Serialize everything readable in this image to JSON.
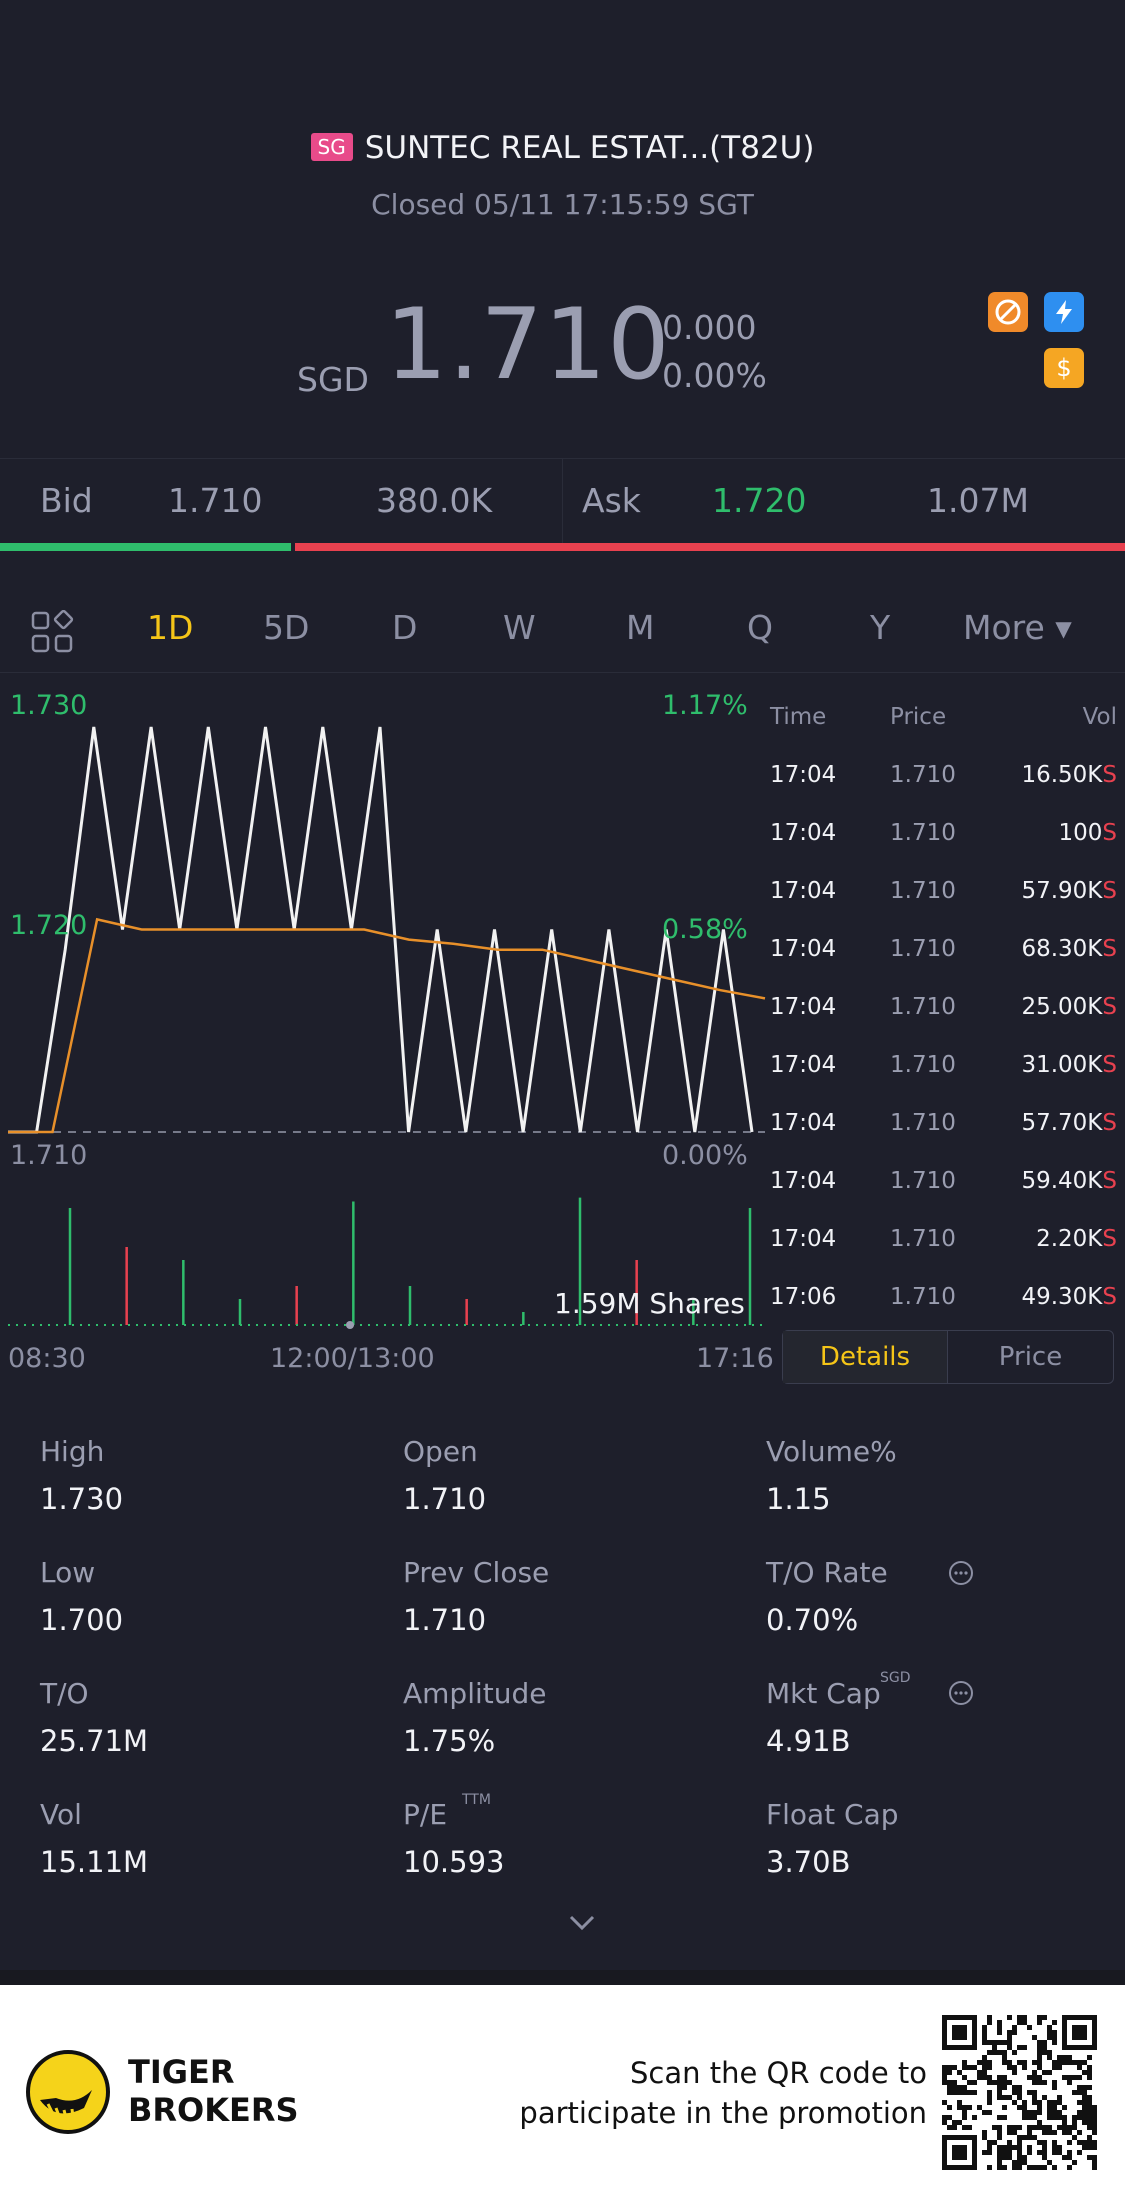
{
  "header": {
    "market_badge": "SG",
    "title": "SUNTEC REAL ESTAT...(T82U)",
    "status": "Closed 05/11 17:15:59 SGT"
  },
  "quote": {
    "currency": "SGD",
    "price": "1.710",
    "change": "0.000",
    "change_pct": "0.00%"
  },
  "orderbook": {
    "bid_label": "Bid",
    "bid_price": "1.710",
    "bid_size": "380.0K",
    "ask_label": "Ask",
    "ask_price": "1.720",
    "ask_size": "1.07M",
    "bid_ratio": 0.26
  },
  "tabs": [
    "1D",
    "5D",
    "D",
    "W",
    "M",
    "Q",
    "Y",
    "More ▾"
  ],
  "active_tab": "1D",
  "chart_labels": {
    "y_top": "1.730",
    "y_mid": "1.720",
    "y_bot": "1.710",
    "pct_top": "1.17%",
    "pct_mid": "0.58%",
    "pct_bot": "0.00%",
    "volume": "1.59M Shares",
    "x_start": "08:30",
    "x_mid": "12:00/13:00",
    "x_end": "17:16"
  },
  "chart_data": {
    "type": "line",
    "ylim": [
      1.71,
      1.73
    ],
    "series": [
      {
        "values": [
          1.71,
          1.71,
          1.719,
          1.73,
          1.72,
          1.73,
          1.72,
          1.73,
          1.72,
          1.73,
          1.72,
          1.73,
          1.72,
          1.73,
          1.71,
          1.72,
          1.71,
          1.72,
          1.71,
          1.72,
          1.71,
          1.72,
          1.71,
          1.72,
          1.71,
          1.72,
          1.71
        ]
      },
      {
        "values": [
          1.71,
          1.71,
          1.7205,
          1.72,
          1.72,
          1.72,
          1.72,
          1.72,
          1.72,
          1.7195,
          1.7193,
          1.719,
          1.719,
          1.7185,
          1.718,
          1.7175,
          1.717,
          1.7166
        ]
      }
    ],
    "volume_bars": [
      0.9,
      0.6,
      0.5,
      0.2,
      0.3,
      0.95,
      0.3,
      0.2,
      0.1,
      0.98,
      0.5,
      0.2,
      0.9
    ]
  },
  "trades": {
    "headers": [
      "Time",
      "Price",
      "Vol"
    ],
    "rows": [
      [
        "17:04",
        "1.710",
        "16.50K"
      ],
      [
        "17:04",
        "1.710",
        "100"
      ],
      [
        "17:04",
        "1.710",
        "57.90K"
      ],
      [
        "17:04",
        "1.710",
        "68.30K"
      ],
      [
        "17:04",
        "1.710",
        "25.00K"
      ],
      [
        "17:04",
        "1.710",
        "31.00K"
      ],
      [
        "17:04",
        "1.710",
        "57.70K"
      ],
      [
        "17:04",
        "1.710",
        "59.40K"
      ],
      [
        "17:04",
        "1.710",
        "2.20K"
      ],
      [
        "17:06",
        "1.710",
        "49.30K"
      ]
    ],
    "side": "S"
  },
  "toggle": {
    "details": "Details",
    "price": "Price"
  },
  "stats": [
    {
      "label": "High",
      "value": "1.730"
    },
    {
      "label": "Open",
      "value": "1.710"
    },
    {
      "label": "Volume%",
      "value": "1.15"
    },
    {
      "label": "Low",
      "value": "1.700"
    },
    {
      "label": "Prev Close",
      "value": "1.710"
    },
    {
      "label": "T/O Rate",
      "value": "0.70%"
    },
    {
      "label": "T/O",
      "value": "25.71M"
    },
    {
      "label": "Amplitude",
      "value": "1.75%"
    },
    {
      "label": "Mkt Cap",
      "value": "4.91B"
    },
    {
      "label": "Vol",
      "value": "15.11M"
    },
    {
      "label": "P/E",
      "value": "10.593"
    },
    {
      "label": "Float Cap",
      "value": "3.70B"
    }
  ],
  "stat_sups": {
    "mkt_cap": "SGD",
    "pe": "TTM"
  },
  "footer": {
    "brand_line1": "TIGER",
    "brand_line2": "BROKERS",
    "promo_line1": "Scan the QR code to",
    "promo_line2": "participate in the promotion"
  },
  "colors": {
    "bg": "#1e1f2b",
    "up": "#2fbd6c",
    "down": "#e8414f",
    "accent": "#f5c518"
  }
}
